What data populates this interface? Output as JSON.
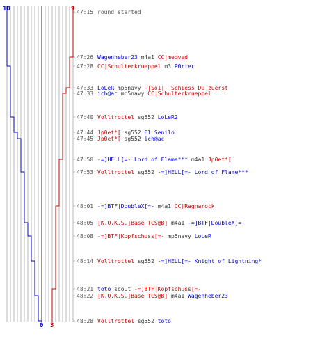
{
  "chart_data": {
    "type": "line",
    "title": "",
    "score_labels": {
      "blue_start": "10",
      "blue_end": "0",
      "red_start": "9",
      "red_end": "3"
    },
    "colors": {
      "blue": "#0000cc",
      "red": "#cc0000",
      "grid": "#b8b8b8",
      "center": "#333333",
      "neutral": "#333333",
      "timestamp": "#555555",
      "dash": "#b8b8b8"
    },
    "events": [
      {
        "time": "47:15",
        "blue": 10,
        "red": 9,
        "parts": [
          {
            "t": "round started",
            "c": "n"
          }
        ]
      },
      {
        "time": "47:26",
        "blue": 10,
        "red": 8,
        "parts": [
          {
            "t": "Wagenheber23",
            "c": "b"
          },
          {
            "t": " m4a1 ",
            "c": "k"
          },
          {
            "t": "CC|medved",
            "c": "r"
          }
        ]
      },
      {
        "time": "47:28",
        "blue": 9,
        "red": 8,
        "parts": [
          {
            "t": "CC|Schulterkrueppel",
            "c": "r"
          },
          {
            "t": " m3 ",
            "c": "k"
          },
          {
            "t": "P0rter",
            "c": "b"
          }
        ]
      },
      {
        "time": "47:33",
        "blue": 9,
        "red": 7,
        "parts": [
          {
            "t": "LoLeR",
            "c": "b"
          },
          {
            "t": " mp5navy ",
            "c": "k"
          },
          {
            "t": "-|SoI|- Schiess Du zuerst",
            "c": "r"
          }
        ]
      },
      {
        "time": "47:33",
        "blue": 9,
        "red": 6,
        "parts": [
          {
            "t": "ich@ac",
            "c": "b"
          },
          {
            "t": " mp5navy ",
            "c": "k"
          },
          {
            "t": "CC|Schulterkrueppel",
            "c": "r"
          }
        ]
      },
      {
        "time": "47:40",
        "blue": 8,
        "red": 6,
        "parts": [
          {
            "t": "Volltrottel",
            "c": "r"
          },
          {
            "t": " sg552 ",
            "c": "k"
          },
          {
            "t": "LoLeR2",
            "c": "b"
          }
        ]
      },
      {
        "time": "47:44",
        "blue": 7,
        "red": 6,
        "parts": [
          {
            "t": "Jp0et*[",
            "c": "r"
          },
          {
            "t": " sg552 ",
            "c": "k"
          },
          {
            "t": "El Senilo",
            "c": "b"
          }
        ]
      },
      {
        "time": "47:45",
        "blue": 6,
        "red": 6,
        "parts": [
          {
            "t": "Jp0et*[",
            "c": "r"
          },
          {
            "t": " sg552 ",
            "c": "k"
          },
          {
            "t": "ich@ac",
            "c": "b"
          }
        ]
      },
      {
        "time": "47:50",
        "blue": 6,
        "red": 5,
        "parts": [
          {
            "t": "-=]HELL[=- Lord of Flame***",
            "c": "b"
          },
          {
            "t": " m4a1 ",
            "c": "k"
          },
          {
            "t": "Jp0et*[",
            "c": "r"
          }
        ]
      },
      {
        "time": "47:53",
        "blue": 5,
        "red": 5,
        "parts": [
          {
            "t": "Volltrottel",
            "c": "r"
          },
          {
            "t": " sg552 ",
            "c": "k"
          },
          {
            "t": "-=]HELL[=- Lord of Flame***",
            "c": "b"
          }
        ]
      },
      {
        "time": "48:01",
        "blue": 5,
        "red": 4,
        "parts": [
          {
            "t": "-=]BTF|DoubleX[=-",
            "c": "b"
          },
          {
            "t": " m4a1 ",
            "c": "k"
          },
          {
            "t": "CC|Ragnarock",
            "c": "r"
          }
        ]
      },
      {
        "time": "48:05",
        "blue": 4,
        "red": 4,
        "parts": [
          {
            "t": "[K.O.K.S.]Base_TCS@B]",
            "c": "r"
          },
          {
            "t": " m4a1 ",
            "c": "k"
          },
          {
            "t": "-=]BTF|DoubleX[=-",
            "c": "b"
          }
        ]
      },
      {
        "time": "48:08",
        "blue": 3,
        "red": 4,
        "parts": [
          {
            "t": "-=]BTF|Kopfschuss[=-",
            "c": "r"
          },
          {
            "t": " mp5navy ",
            "c": "k"
          },
          {
            "t": "LoLeR",
            "c": "b"
          }
        ]
      },
      {
        "time": "48:14",
        "blue": 2,
        "red": 4,
        "parts": [
          {
            "t": "Volltrottel",
            "c": "r"
          },
          {
            "t": " sg552 ",
            "c": "k"
          },
          {
            "t": "-=]HELL[=- Knight of Lightning*",
            "c": "b"
          }
        ]
      },
      {
        "time": "48:21",
        "blue": 2,
        "red": 3,
        "parts": [
          {
            "t": "toto",
            "c": "b"
          },
          {
            "t": " scout ",
            "c": "k"
          },
          {
            "t": "-=]BTF|Kopfschuss[=-",
            "c": "r"
          }
        ]
      },
      {
        "time": "48:22",
        "blue": 1,
        "red": 3,
        "parts": [
          {
            "t": "[K.O.K.S.]Base_TCS@B]",
            "c": "r"
          },
          {
            "t": " m4a1 ",
            "c": "k"
          },
          {
            "t": "Wagenheber23",
            "c": "b"
          }
        ]
      },
      {
        "time": "48:28",
        "blue": 0,
        "red": 3,
        "parts": [
          {
            "t": "Volltrottel",
            "c": "r"
          },
          {
            "t": " sg552 ",
            "c": "k"
          },
          {
            "t": "toto",
            "c": "b"
          }
        ]
      }
    ]
  }
}
